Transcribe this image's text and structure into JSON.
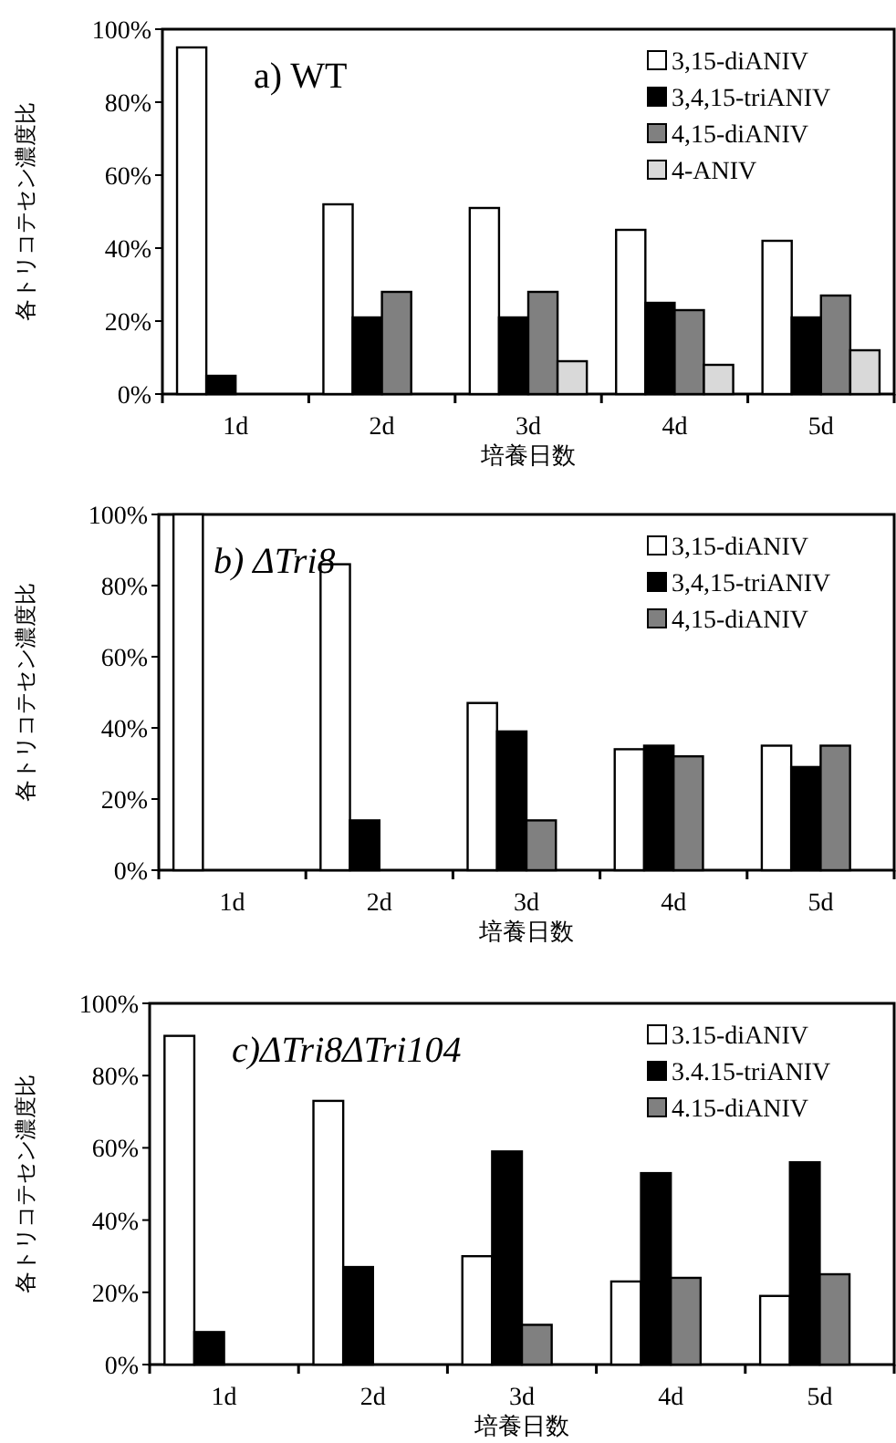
{
  "chart_data": [
    {
      "type": "bar",
      "title": "a) WT",
      "xlabel": "培養日数",
      "ylabel": "各トリコテセン濃度比",
      "categories": [
        "1d",
        "2d",
        "3d",
        "4d",
        "5d"
      ],
      "ylim": [
        0,
        100
      ],
      "yticks": [
        {
          "value": 0,
          "label": "0%"
        },
        {
          "value": 20,
          "label": "20%"
        },
        {
          "value": 40,
          "label": "40%"
        },
        {
          "value": 60,
          "label": "60%"
        },
        {
          "value": 80,
          "label": "80%"
        },
        {
          "value": 100,
          "label": "100%"
        }
      ],
      "legend": "top right",
      "grid": false,
      "series": [
        {
          "name": "3,15-diANIV",
          "color": "#ffffff",
          "values": [
            95,
            52,
            51,
            45,
            42
          ]
        },
        {
          "name": "3,4,15-triANIV",
          "color": "#000000",
          "values": [
            5,
            21,
            21,
            25,
            21
          ]
        },
        {
          "name": "4,15-diANIV",
          "color": "#808080",
          "values": [
            null,
            28,
            28,
            23,
            27
          ]
        },
        {
          "name": "4-ANIV",
          "color": "#d9d9d9",
          "values": [
            null,
            null,
            9,
            8,
            12
          ]
        }
      ]
    },
    {
      "type": "bar",
      "title": "b) ΔTri8",
      "xlabel": "培養日数",
      "ylabel": "各トリコテセン濃度比",
      "categories": [
        "1d",
        "2d",
        "3d",
        "4d",
        "5d"
      ],
      "ylim": [
        0,
        100
      ],
      "yticks": [
        {
          "value": 0,
          "label": "0%"
        },
        {
          "value": 20,
          "label": "20%"
        },
        {
          "value": 40,
          "label": "40%"
        },
        {
          "value": 60,
          "label": "60%"
        },
        {
          "value": 80,
          "label": "80%"
        },
        {
          "value": 100,
          "label": "100%"
        }
      ],
      "legend": "top right",
      "grid": false,
      "series": [
        {
          "name": "3,15-diANIV",
          "color": "#ffffff",
          "values": [
            100,
            86,
            47,
            34,
            35
          ]
        },
        {
          "name": "3,4,15-triANIV",
          "color": "#000000",
          "values": [
            null,
            14,
            39,
            35,
            29
          ]
        },
        {
          "name": "4,15-diANIV",
          "color": "#808080",
          "values": [
            null,
            null,
            14,
            32,
            35
          ]
        }
      ]
    },
    {
      "type": "bar",
      "title": "c)ΔTri8ΔTri104",
      "xlabel": "培養日数",
      "ylabel": "各トリコテセン濃度比",
      "categories": [
        "1d",
        "2d",
        "3d",
        "4d",
        "5d"
      ],
      "ylim": [
        0,
        100
      ],
      "yticks": [
        {
          "value": 0,
          "label": "0%"
        },
        {
          "value": 20,
          "label": "20%"
        },
        {
          "value": 40,
          "label": "40%"
        },
        {
          "value": 60,
          "label": "60%"
        },
        {
          "value": 80,
          "label": "80%"
        },
        {
          "value": 100,
          "label": "100%"
        }
      ],
      "legend": "top right",
      "grid": false,
      "series": [
        {
          "name": "3.15-diANIV",
          "color": "#ffffff",
          "values": [
            91,
            73,
            30,
            23,
            19
          ]
        },
        {
          "name": "3.4.15-triANIV",
          "color": "#000000",
          "values": [
            9,
            27,
            59,
            53,
            56
          ]
        },
        {
          "name": "4.15-diANIV",
          "color": "#808080",
          "values": [
            null,
            null,
            11,
            24,
            25
          ]
        }
      ]
    }
  ]
}
